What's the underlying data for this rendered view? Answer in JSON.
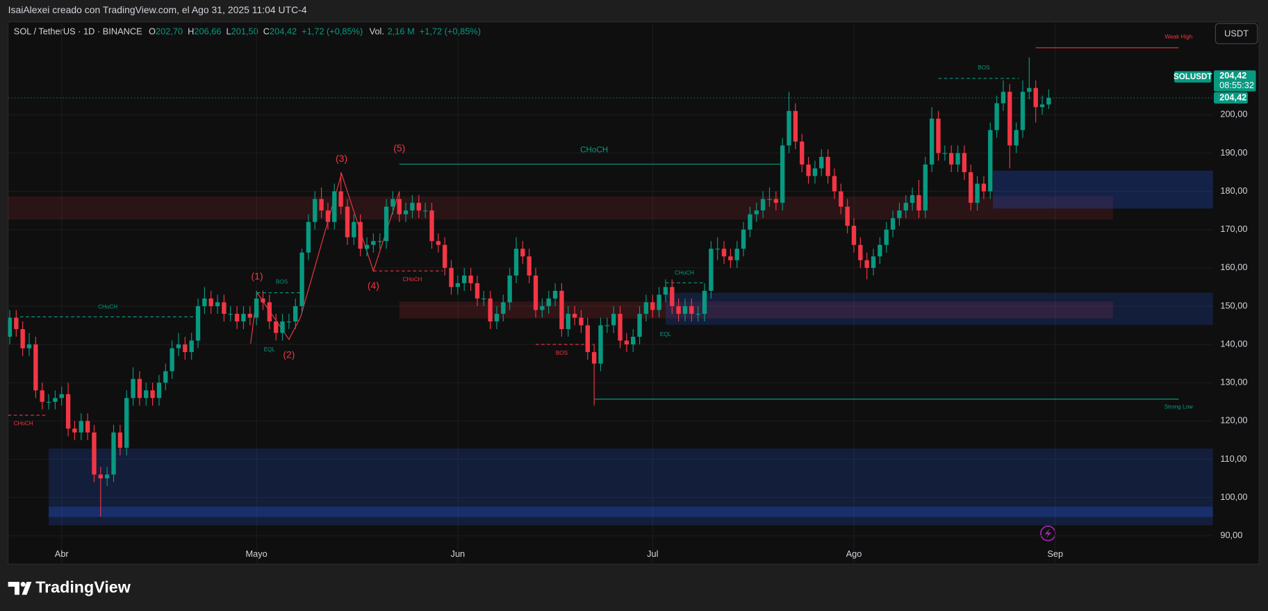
{
  "header": {
    "attribution": "IsaiAlexei creado con TradingView.com, el Ago 31, 2025 11:04 UTC-4",
    "symbol": "SOL / TetherUS · 1D · BINANCE",
    "o_label": "O",
    "open": "202,70",
    "h_label": "H",
    "high": "206,66",
    "l_label": "L",
    "low": "201,50",
    "c_label": "C",
    "close": "204,42",
    "change": "+1,72 (+0,85%)",
    "vol_label": "Vol.",
    "volume": "2,16 M",
    "vol_change": "+1,72 (+0,85%)"
  },
  "currency_button": "USDT",
  "price_tags": {
    "symbol": "SOLUSDT",
    "price": "204,42",
    "countdown": "08:55:32",
    "last": "204,42"
  },
  "logo": "TradingView",
  "chart_data": {
    "type": "candlestick",
    "up_color": "#089981",
    "down_color": "#f23645",
    "grid": true,
    "open": [
      142,
      147,
      144,
      139,
      140,
      128,
      125,
      125,
      126,
      127,
      118,
      117,
      120,
      117,
      106,
      105,
      106,
      117,
      113,
      126,
      131,
      126,
      128,
      126,
      130,
      133,
      139,
      140,
      138,
      141,
      150,
      152,
      150,
      151,
      148,
      148,
      146,
      148,
      147,
      152,
      151,
      146,
      143,
      146,
      146,
      150,
      164,
      172,
      178,
      175,
      172,
      180,
      176,
      168,
      172,
      165,
      166,
      167,
      167,
      176,
      178,
      174,
      175,
      177,
      175,
      175,
      167,
      166,
      160,
      155,
      156,
      158,
      156,
      152,
      152,
      146,
      148,
      151,
      158,
      165,
      163,
      158,
      149,
      150,
      152,
      154,
      144,
      148,
      147,
      145,
      138,
      135,
      145,
      145,
      148,
      141,
      140,
      142,
      148,
      151,
      149,
      153,
      155,
      150,
      148,
      150,
      148,
      148,
      154,
      165,
      165,
      163,
      162,
      165,
      170,
      174,
      175,
      178,
      178,
      177,
      192,
      201,
      193,
      187,
      184,
      186,
      189,
      184,
      180,
      176,
      171,
      166,
      162,
      160,
      163,
      166,
      170,
      173,
      175,
      177,
      179,
      175,
      187,
      199,
      190,
      190,
      187,
      190,
      185,
      177,
      182,
      180,
      196,
      203,
      206,
      192,
      196,
      206,
      207,
      202,
      202.7
    ],
    "high": [
      149,
      149,
      146,
      143,
      142,
      130,
      127,
      128,
      129,
      130,
      120,
      122,
      122,
      119,
      108,
      108,
      119,
      119,
      128,
      134,
      133,
      130,
      130,
      132,
      135,
      141,
      143,
      142,
      143,
      152,
      155,
      154,
      153,
      153,
      150,
      150,
      150,
      150,
      154,
      154,
      153,
      148,
      148,
      148,
      152,
      165,
      174,
      180,
      181,
      177,
      182,
      185,
      178,
      174,
      174,
      168,
      169,
      169,
      178,
      180,
      180,
      177,
      179,
      179,
      177,
      177,
      169,
      168,
      162,
      158,
      160,
      160,
      158,
      154,
      154,
      150,
      153,
      160,
      168,
      167,
      165,
      160,
      152,
      154,
      156,
      156,
      150,
      150,
      149,
      147,
      140,
      147,
      147,
      150,
      150,
      143,
      144,
      150,
      153,
      153,
      155,
      157,
      157,
      152,
      152,
      152,
      150,
      156,
      167,
      168,
      167,
      165,
      167,
      172,
      176,
      177,
      180,
      181,
      180,
      194,
      206,
      203,
      195,
      189,
      188,
      191,
      191,
      186,
      182,
      178,
      173,
      168,
      164,
      165,
      168,
      172,
      175,
      177,
      179,
      181,
      183,
      189,
      202,
      201,
      192,
      192,
      192,
      192,
      187,
      184,
      184,
      198,
      205,
      209,
      208,
      198,
      209,
      215,
      209,
      205,
      206.66
    ],
    "low": [
      140,
      142,
      137,
      137,
      126,
      123,
      123,
      123,
      124,
      116,
      115,
      115,
      115,
      104,
      95,
      103,
      104,
      111,
      111,
      124,
      124,
      124,
      124,
      124,
      128,
      131,
      137,
      136,
      136,
      139,
      148,
      148,
      148,
      146,
      146,
      144,
      144,
      145,
      145,
      149,
      144,
      141,
      141,
      144,
      144,
      148,
      162,
      170,
      173,
      170,
      170,
      174,
      166,
      166,
      163,
      163,
      164,
      165,
      165,
      174,
      172,
      172,
      173,
      173,
      173,
      165,
      164,
      158,
      153,
      153,
      154,
      154,
      150,
      150,
      144,
      144,
      146,
      149,
      156,
      161,
      156,
      147,
      147,
      148,
      150,
      142,
      142,
      145,
      143,
      136,
      124,
      133,
      143,
      143,
      139,
      138,
      138,
      140,
      146,
      147,
      147,
      151,
      148,
      146,
      146,
      146,
      146,
      146,
      152,
      162,
      161,
      160,
      160,
      163,
      168,
      172,
      173,
      176,
      175,
      175,
      190,
      191,
      185,
      182,
      182,
      184,
      182,
      178,
      174,
      169,
      164,
      160,
      157,
      158,
      161,
      164,
      168,
      171,
      173,
      175,
      173,
      173,
      185,
      188,
      188,
      185,
      185,
      183,
      175,
      175,
      178,
      178,
      194,
      201,
      186,
      190,
      194,
      204,
      198,
      200,
      201.5
    ],
    "close": [
      147,
      144,
      139,
      140,
      128,
      125,
      125,
      126,
      127,
      118,
      117,
      120,
      117,
      106,
      105,
      106,
      117,
      113,
      126,
      131,
      126,
      128,
      126,
      130,
      133,
      139,
      140,
      138,
      141,
      150,
      152,
      150,
      151,
      148,
      148,
      146,
      148,
      147,
      152,
      151,
      146,
      143,
      146,
      146,
      150,
      164,
      172,
      178,
      175,
      172,
      180,
      176,
      168,
      172,
      165,
      166,
      167,
      167,
      176,
      178,
      174,
      175,
      177,
      175,
      175,
      167,
      166,
      160,
      155,
      156,
      158,
      156,
      152,
      152,
      146,
      148,
      151,
      158,
      165,
      163,
      158,
      149,
      150,
      152,
      154,
      144,
      148,
      147,
      145,
      138,
      135,
      145,
      145,
      148,
      141,
      140,
      142,
      148,
      151,
      149,
      153,
      155,
      150,
      148,
      150,
      148,
      148,
      154,
      165,
      165,
      163,
      162,
      165,
      170,
      174,
      175,
      178,
      178,
      177,
      192,
      201,
      193,
      187,
      184,
      186,
      189,
      184,
      180,
      176,
      171,
      166,
      162,
      160,
      163,
      166,
      170,
      173,
      175,
      177,
      179,
      175,
      187,
      199,
      190,
      190,
      187,
      190,
      185,
      177,
      182,
      180,
      196,
      203,
      206,
      192,
      196,
      206,
      207,
      202,
      202.7,
      204.42
    ],
    "xlim": [
      -0.25,
      185.3
    ],
    "xticks": [
      {
        "value": 8,
        "label": "Abr"
      },
      {
        "value": 38,
        "label": "Mayo"
      },
      {
        "value": 69,
        "label": "Jun"
      },
      {
        "value": 99,
        "label": "Jul"
      },
      {
        "value": 130,
        "label": "Ago"
      },
      {
        "value": 161,
        "label": "Sep"
      }
    ],
    "ylim": [
      87.46,
      224.07
    ],
    "yticks": [
      {
        "value": 90,
        "label": "90,00"
      },
      {
        "value": 100,
        "label": "100,00"
      },
      {
        "value": 110,
        "label": "110,00"
      },
      {
        "value": 120,
        "label": "120,00"
      },
      {
        "value": 130,
        "label": "130,00"
      },
      {
        "value": 140,
        "label": "140,00"
      },
      {
        "value": 150,
        "label": "150,00"
      },
      {
        "value": 160,
        "label": "160,00"
      },
      {
        "value": 170,
        "label": "170,00"
      },
      {
        "value": 180,
        "label": "180,00"
      },
      {
        "value": 190,
        "label": "190,00"
      },
      {
        "value": 200,
        "label": "200,00"
      }
    ],
    "zones": [
      {
        "x0": -0.25,
        "x1": 169.9,
        "low": 172.6,
        "high": 178.7,
        "color": "#f236451f"
      },
      {
        "x0": 60,
        "x1": 169.9,
        "low": 146.8,
        "high": 151.2,
        "color": "#f2364526"
      },
      {
        "x0": 6,
        "x1": 185.3,
        "low": 92.7,
        "high": 112.8,
        "color": "#2962ff2e"
      },
      {
        "x0": 6,
        "x1": 185.3,
        "low": 94.9,
        "high": 97.6,
        "color": "#2962ff40"
      },
      {
        "x0": 101,
        "x1": 185.3,
        "low": 145.1,
        "high": 153.5,
        "color": "#2962ff2e"
      },
      {
        "x0": 151.4,
        "x1": 185.3,
        "low": 175.5,
        "high": 185.4,
        "color": "#2962ff3d"
      }
    ],
    "lines": [
      {
        "x0": 60,
        "x1": 118.7,
        "price": 187.1,
        "color": "#089981",
        "dash": false
      },
      {
        "x0": 158,
        "x1": 180,
        "price": 217.5,
        "color": "#f23645",
        "dash": false
      },
      {
        "x0": 90,
        "x1": 180,
        "price": 125.7,
        "color": "#089981",
        "dash": false
      },
      {
        "x0": 1.6,
        "x1": 29.5,
        "price": 147.2,
        "color": "#089981",
        "dash": true
      },
      {
        "x0": -0.25,
        "x1": 5.5,
        "price": 121.5,
        "color": "#f23645",
        "dash": true
      },
      {
        "x0": 38.1,
        "x1": 44.8,
        "price": 153.5,
        "color": "#089981",
        "dash": true
      },
      {
        "x0": 56,
        "x1": 66.7,
        "price": 159.2,
        "color": "#f23645",
        "dash": true
      },
      {
        "x0": 81,
        "x1": 90,
        "price": 140,
        "color": "#f23645",
        "dash": true
      },
      {
        "x0": 101,
        "x1": 106.8,
        "price": 156.1,
        "color": "#089981",
        "dash": true
      },
      {
        "x0": 143,
        "x1": 155.4,
        "price": 209.5,
        "color": "#089981",
        "dash": true
      }
    ],
    "wave": {
      "color": "#f23645",
      "points": [
        [
          37.1,
          140.2
        ],
        [
          38.1,
          153.5
        ],
        [
          43,
          141.3
        ],
        [
          44.8,
          147.2
        ],
        [
          51.1,
          184.6
        ],
        [
          56,
          159.2
        ],
        [
          60,
          179.9
        ]
      ]
    },
    "annotations": [
      {
        "text": "(1)",
        "x": 38.1,
        "y": 157.6,
        "color": "#f23645"
      },
      {
        "text": "(2)",
        "x": 43,
        "y": 137.1,
        "color": "#f23645"
      },
      {
        "text": "(3)",
        "x": 51.1,
        "y": 188.4,
        "color": "#f23645"
      },
      {
        "text": "(4)",
        "x": 56,
        "y": 155.2,
        "color": "#f23645"
      },
      {
        "text": "(5)",
        "x": 60,
        "y": 191.1,
        "color": "#f23645"
      },
      {
        "text": "CHoCH",
        "x": 90,
        "y": 190.7,
        "color": "#089981"
      },
      {
        "text": "CHoCH",
        "x": 15.1,
        "y": 149.7,
        "color": "#089981"
      },
      {
        "text": "CHoCH",
        "x": 2.1,
        "y": 119.3,
        "color": "#f23645"
      },
      {
        "text": "BOS",
        "x": 41.9,
        "y": 156.3,
        "color": "#089981"
      },
      {
        "text": "EQL",
        "x": 40,
        "y": 138.6,
        "color": "#089981"
      },
      {
        "text": "CHoCH",
        "x": 62,
        "y": 156.9,
        "color": "#f23645"
      },
      {
        "text": "BOS",
        "x": 85,
        "y": 137.7,
        "color": "#f23645"
      },
      {
        "text": "CHoCH",
        "x": 103.9,
        "y": 158.6,
        "color": "#089981"
      },
      {
        "text": "EQL",
        "x": 101,
        "y": 142.6,
        "color": "#089981"
      },
      {
        "text": "BOS",
        "x": 150,
        "y": 212.2,
        "color": "#089981"
      },
      {
        "text": "Weak High",
        "x": 180,
        "y": 220.3,
        "color": "#f23645"
      },
      {
        "text": "Strong Low",
        "x": 180,
        "y": 123.6,
        "color": "#089981"
      }
    ]
  }
}
